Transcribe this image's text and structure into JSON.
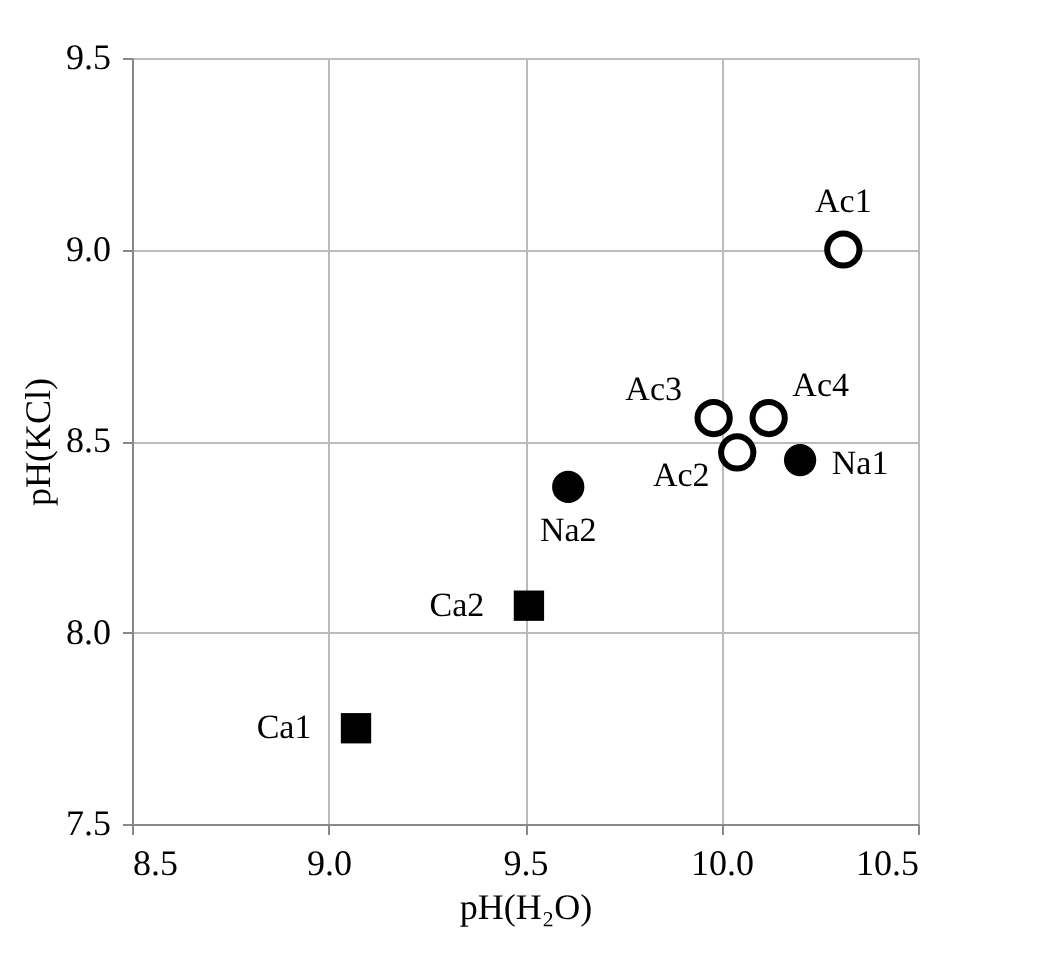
{
  "chart_data": {
    "type": "scatter",
    "xlabel": "pH(H₂O)",
    "ylabel": "pH(KCl)",
    "xlim": [
      8.5,
      10.5
    ],
    "xticks": [
      {
        "value": 8.5,
        "label": "8.5"
      },
      {
        "value": 9.0,
        "label": "9.0"
      },
      {
        "value": 9.5,
        "label": "9.5"
      },
      {
        "value": 10.0,
        "label": "10.0"
      },
      {
        "value": 10.5,
        "label": "10.5"
      }
    ],
    "ylim": [
      7.5,
      9.5
    ],
    "yticks": [
      {
        "value": 7.5,
        "label": "7.5"
      },
      {
        "value": 8.0,
        "label": "8.0"
      },
      {
        "value": 8.5,
        "label": "8.5"
      },
      {
        "value": 9.0,
        "label": "9.0"
      },
      {
        "value": 9.5,
        "label": "9.5"
      }
    ],
    "grid": true,
    "series": [
      {
        "marker": "circle",
        "color": "#000000",
        "x": [
          10.31,
          9.98,
          10.12,
          10.04
        ],
        "values": [
          9.0,
          8.56,
          8.56,
          8.47
        ]
      },
      {
        "marker": "circle",
        "color": "#000000",
        "x": [
          10.2,
          9.61
        ],
        "values": [
          8.45,
          8.38
        ]
      },
      {
        "marker": "square",
        "color": "#000000",
        "x": [
          9.51,
          9.07
        ],
        "values": [
          8.07,
          7.75
        ]
      }
    ],
    "annotations": [
      {
        "text": "Ac1",
        "x": 10.31,
        "y": 9.0
      },
      {
        "text": "Ac3",
        "x": 9.98,
        "y": 8.56
      },
      {
        "text": "Ac4",
        "x": 10.12,
        "y": 8.56
      },
      {
        "text": "Ac2",
        "x": 10.04,
        "y": 8.47
      },
      {
        "text": "Na1",
        "x": 10.2,
        "y": 8.45
      },
      {
        "text": "Na2",
        "x": 9.61,
        "y": 8.38
      },
      {
        "text": "Ca2",
        "x": 9.51,
        "y": 8.07
      },
      {
        "text": "Ca1",
        "x": 9.07,
        "y": 7.75
      }
    ]
  }
}
